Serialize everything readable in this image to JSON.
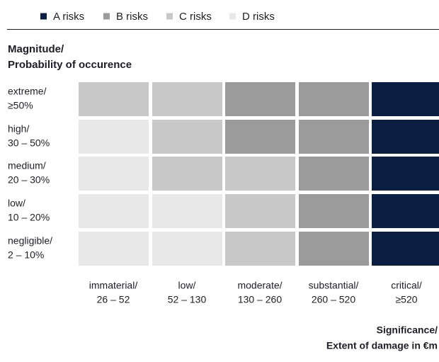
{
  "legend": [
    {
      "label": "A risks",
      "color": "#0b1f42"
    },
    {
      "label": "B risks",
      "color": "#9b9b9b"
    },
    {
      "label": "C risks",
      "color": "#c8c8c8"
    },
    {
      "label": "D risks",
      "color": "#e8e8e8"
    }
  ],
  "y_title": [
    "Magnitude/",
    "Probability of occurence"
  ],
  "rows": [
    [
      "extreme/",
      "≥50%"
    ],
    [
      "high/",
      "30 – 50%"
    ],
    [
      "medium/",
      "20 – 30%"
    ],
    [
      "low/",
      "10 – 20%"
    ],
    [
      "negligible/",
      "2 – 10%"
    ]
  ],
  "columns": [
    [
      "immaterial/",
      "26 – 52"
    ],
    [
      "low/",
      "52 – 130"
    ],
    [
      "moderate/",
      "130 – 260"
    ],
    [
      "substantial/",
      "260 – 520"
    ],
    [
      "critical/",
      "≥520"
    ]
  ],
  "cells": [
    [
      2,
      2,
      1,
      1,
      0
    ],
    [
      3,
      2,
      1,
      1,
      0
    ],
    [
      3,
      2,
      2,
      1,
      0
    ],
    [
      3,
      3,
      2,
      1,
      0
    ],
    [
      3,
      3,
      2,
      1,
      0
    ]
  ],
  "x_title": [
    "Significance/",
    "Extent of damage in €m"
  ]
}
